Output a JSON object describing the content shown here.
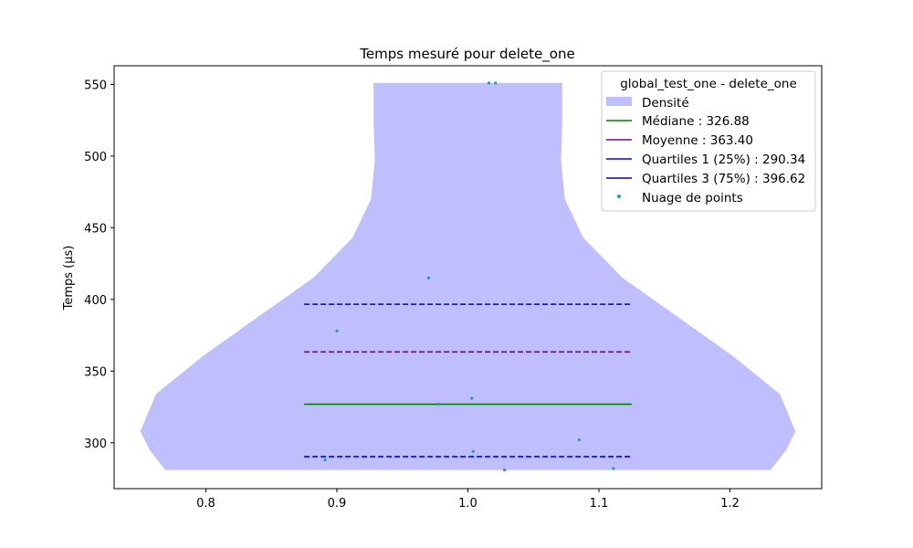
{
  "chart_data": {
    "type": "violin",
    "title": "Temps mesuré pour delete_one",
    "xlabel": "",
    "ylabel": "Temps (µs)",
    "xlim": [
      0.73,
      1.27
    ],
    "ylim": [
      268,
      563
    ],
    "x_ticks": [
      0.8,
      0.9,
      1.0,
      1.1,
      1.2
    ],
    "y_ticks": [
      300,
      350,
      400,
      450,
      500,
      550
    ],
    "density": {
      "name": "Densité",
      "color": "#bfbfff",
      "center": 1.0,
      "y_min": 281,
      "y_max": 551,
      "profile": [
        [
          281,
          0.231
        ],
        [
          295,
          0.243
        ],
        [
          308,
          0.25
        ],
        [
          334,
          0.238
        ],
        [
          360,
          0.203
        ],
        [
          388,
          0.16
        ],
        [
          415,
          0.118
        ],
        [
          443,
          0.088
        ],
        [
          470,
          0.074
        ],
        [
          497,
          0.071
        ],
        [
          522,
          0.072
        ],
        [
          551,
          0.072
        ]
      ]
    },
    "lines": [
      {
        "name": "Médiane : 326.88",
        "value": 326.88,
        "color": "#008000",
        "dashed": false,
        "x_from": 0.875,
        "x_to": 1.125
      },
      {
        "name": "Moyenne : 363.40",
        "value": 363.4,
        "color": "#800080",
        "dashed": true,
        "x_from": 0.875,
        "x_to": 1.125
      },
      {
        "name": "Quartiles 1 (25%) : 290.34",
        "value": 290.34,
        "color": "#0000ff",
        "dashed": true,
        "x_from": 0.875,
        "x_to": 1.125
      },
      {
        "name": "Quartiles 3 (75%) : 396.62",
        "value": 396.62,
        "color": "#0000cc",
        "dashed": true,
        "x_from": 0.875,
        "x_to": 1.125
      }
    ],
    "points": {
      "name": "Nuage de points",
      "color": "#1f9fa8",
      "values": [
        [
          1.016,
          551
        ],
        [
          1.021,
          551
        ],
        [
          0.97,
          415
        ],
        [
          0.9,
          378
        ],
        [
          1.003,
          331
        ],
        [
          0.978,
          327
        ],
        [
          1.085,
          302
        ],
        [
          1.004,
          294
        ],
        [
          0.891,
          288
        ],
        [
          1.028,
          281
        ],
        [
          1.111,
          282
        ]
      ]
    },
    "legend": {
      "title": "global_test_one - delete_one",
      "position": "top-right"
    }
  }
}
